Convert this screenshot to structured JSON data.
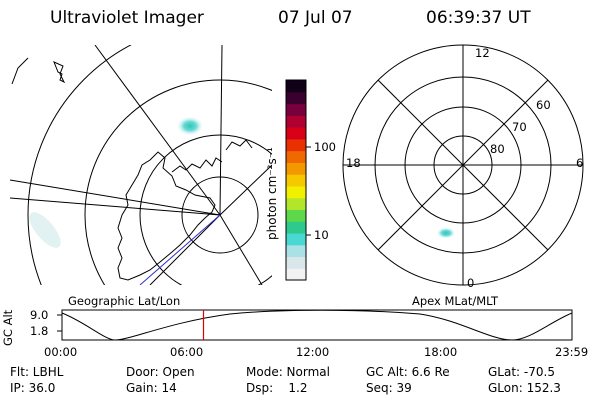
{
  "header": {
    "instrument": "Ultraviolet Imager",
    "date": "07 Jul 07",
    "time": "06:39:37 UT"
  },
  "colorbar": {
    "unit_label": "photon cm⁻²s⁻¹",
    "ticks": [
      "100",
      "10"
    ],
    "colors": [
      "#f2f2f2",
      "#d9e6ea",
      "#a8e2e6",
      "#4ad8d2",
      "#2ec98c",
      "#5cd84a",
      "#b2e62a",
      "#f0f000",
      "#f6c800",
      "#f49800",
      "#f06800",
      "#e83000",
      "#d80018",
      "#b00030",
      "#78003c",
      "#3a0030",
      "#100018"
    ]
  },
  "left_map": {
    "label": "Geographic Lat/Lon"
  },
  "right_map": {
    "label": "Apex MLat/MLT",
    "mlt_labels": [
      "12",
      "18",
      "6",
      "0"
    ],
    "lat_labels": [
      "60",
      "70",
      "80"
    ]
  },
  "gc_alt_panel": {
    "axis_label": "GC Alt",
    "y_ticks": [
      "9.0",
      "1.8"
    ],
    "x_ticks": [
      "00:00",
      "06:00",
      "12:00",
      "18:00",
      "23:59"
    ],
    "current_time_hours": 6.66
  },
  "status": {
    "flt": "Flt: LBHL",
    "ip": "IP: 36.0",
    "door": "Door: Open",
    "gain": "Gain: 14",
    "mode": "Mode: Normal",
    "dsp": "Dsp:    1.2",
    "gc_alt": "GC Alt: 6.6 Re",
    "seq": "Seq: 39",
    "glat": "GLat: -70.5",
    "glon": "GLon: 152.3"
  }
}
